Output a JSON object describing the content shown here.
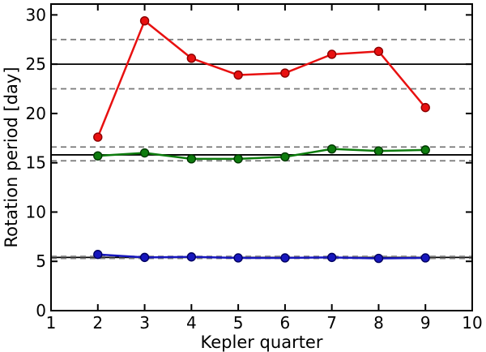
{
  "chart_data": {
    "type": "line",
    "title": "",
    "xlabel": "Kepler quarter",
    "ylabel": "Rotation period [day]",
    "xlim": [
      1,
      10
    ],
    "ylim": [
      0,
      31.1
    ],
    "x_ticks": [
      1,
      2,
      3,
      4,
      5,
      6,
      7,
      8,
      9,
      10
    ],
    "y_ticks": [
      0,
      5,
      10,
      15,
      20,
      25,
      30
    ],
    "grid": false,
    "legend": "none",
    "x": [
      2,
      3,
      4,
      5,
      6,
      7,
      8,
      9
    ],
    "series": [
      {
        "name": "red-series",
        "color": "#e81010",
        "marker_edge": "#8b0000",
        "values": [
          17.6,
          29.4,
          25.6,
          23.9,
          24.1,
          26.0,
          26.3,
          20.6
        ],
        "mean_line": 25.0,
        "band": [
          22.5,
          27.5
        ]
      },
      {
        "name": "green-series",
        "color": "#0e7c0e",
        "marker_edge": "#003800",
        "values": [
          15.7,
          16.0,
          15.4,
          15.4,
          15.6,
          16.4,
          16.2,
          16.3
        ],
        "mean_line": 15.8,
        "band": [
          15.2,
          16.6
        ]
      },
      {
        "name": "blue-series",
        "color": "#1717bd",
        "marker_edge": "#000060",
        "values": [
          5.7,
          5.4,
          5.45,
          5.35,
          5.35,
          5.4,
          5.3,
          5.35
        ],
        "mean_line": 5.4,
        "band": [
          5.3,
          5.5
        ]
      }
    ],
    "ref_line_color": "#000000",
    "band_line_color": "#7a7a7a",
    "band_line_style": "dashed",
    "spine_color": "#000000"
  }
}
